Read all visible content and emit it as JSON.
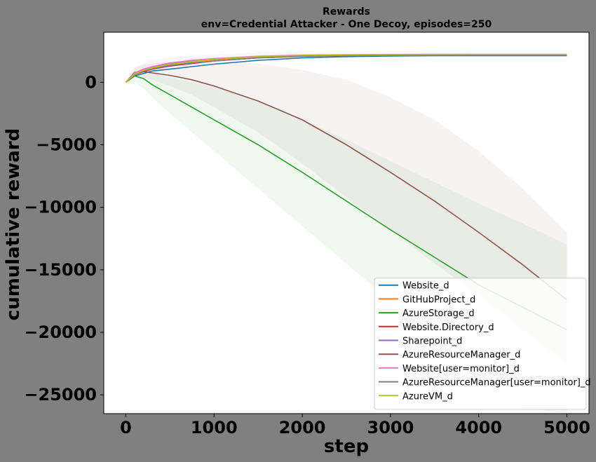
{
  "chart_data": {
    "type": "line",
    "title": "Rewards",
    "subtitle": "env=Credential Attacker - One Decoy, episodes=250",
    "xlabel": "step",
    "ylabel": "cumulative reward",
    "xlim": [
      -250,
      5250
    ],
    "ylim": [
      -26500,
      4000
    ],
    "xticks": [
      0,
      1000,
      2000,
      3000,
      4000,
      5000
    ],
    "xtick_labels": [
      "0",
      "1000",
      "2000",
      "3000",
      "4000",
      "5000"
    ],
    "yticks": [
      0,
      -5000,
      -10000,
      -15000,
      -20000,
      -25000
    ],
    "ytick_labels": [
      "0",
      "−5000",
      "−10000",
      "−15000",
      "−20000",
      "−25000"
    ],
    "grid": false,
    "legend_position": "bottom-right",
    "x": [
      0,
      100,
      200,
      300,
      500,
      750,
      1000,
      1500,
      2000,
      2500,
      3000,
      3500,
      4000,
      4500,
      5000
    ],
    "series": [
      {
        "name": "Website_d",
        "color": "#1f77b4",
        "values": [
          0,
          500,
          700,
          900,
          1050,
          1250,
          1450,
          1750,
          1950,
          2050,
          2100,
          2120,
          2130,
          2130,
          2130
        ]
      },
      {
        "name": "GitHubProject_d",
        "color": "#ff7f0e",
        "values": [
          0,
          650,
          950,
          1150,
          1450,
          1650,
          1800,
          2050,
          2150,
          2180,
          2200,
          2210,
          2210,
          2210,
          2210
        ]
      },
      {
        "name": "AzureStorage_d",
        "color": "#2ca02c",
        "values": [
          0,
          500,
          300,
          -200,
          -1000,
          -2000,
          -3000,
          -5000,
          -7200,
          -9500,
          -11800,
          -14000,
          -16200,
          -18000,
          -19800
        ]
      },
      {
        "name": "Website.Directory_d",
        "color": "#d62728",
        "values": [
          0,
          600,
          850,
          1050,
          1300,
          1500,
          1700,
          1950,
          2080,
          2140,
          2160,
          2170,
          2180,
          2180,
          2180
        ]
      },
      {
        "name": "Sharepoint_d",
        "color": "#9467bd",
        "values": [
          0,
          700,
          1000,
          1200,
          1500,
          1700,
          1850,
          2050,
          2150,
          2190,
          2210,
          2220,
          2220,
          2220,
          2220
        ]
      },
      {
        "name": "AzureResourceManager_d",
        "color": "#8c564b",
        "values": [
          0,
          800,
          850,
          750,
          550,
          200,
          -300,
          -1500,
          -3000,
          -5000,
          -7200,
          -9500,
          -12000,
          -14600,
          -17400
        ]
      },
      {
        "name": "Website[user=monitor]_d",
        "color": "#e377c2",
        "values": [
          0,
          750,
          1050,
          1250,
          1550,
          1750,
          1900,
          2080,
          2170,
          2200,
          2220,
          2230,
          2230,
          2230,
          2230
        ]
      },
      {
        "name": "AzureResourceManager[user=monitor]_d",
        "color": "#7f7f7f",
        "values": [
          0,
          600,
          900,
          1100,
          1350,
          1550,
          1700,
          1950,
          2070,
          2120,
          2150,
          2160,
          2170,
          2170,
          2170
        ]
      },
      {
        "name": "AzureVM_d",
        "color": "#bcbd22",
        "values": [
          0,
          650,
          950,
          1150,
          1450,
          1650,
          1850,
          2050,
          2150,
          2190,
          2210,
          2220,
          2230,
          2230,
          2230
        ]
      }
    ],
    "bands": [
      {
        "series": "AzureStorage_d",
        "color": "#2ca02c",
        "lower": [
          0,
          0,
          -500,
          -1200,
          -2500,
          -4000,
          -5500,
          -8500,
          -11500,
          -14500,
          -17500,
          -20500,
          -23000,
          -26000,
          -28500
        ],
        "upper": [
          0,
          700,
          800,
          700,
          400,
          0,
          -400,
          -1500,
          -3000,
          -4600,
          -6300,
          -8000,
          -9700,
          -11300,
          -13000
        ]
      },
      {
        "series": "AzureResourceManager_d",
        "color": "#8c564b",
        "lower": [
          0,
          500,
          400,
          200,
          -300,
          -1000,
          -2000,
          -4000,
          -6500,
          -9200,
          -11800,
          -14500,
          -17000,
          -19800,
          -22500
        ],
        "upper": [
          0,
          1200,
          1400,
          1500,
          1600,
          1700,
          1700,
          1500,
          1000,
          200,
          -1200,
          -3000,
          -5500,
          -8500,
          -12000
        ]
      },
      {
        "series": "Website[user=monitor]_d",
        "color": "#e377c2",
        "lower": [
          0,
          500,
          700,
          900,
          1200,
          1400,
          1600,
          1900,
          2050,
          2120,
          2150,
          2170,
          2180,
          2180,
          2180
        ],
        "upper": [
          0,
          1100,
          1500,
          1800,
          2000,
          2150,
          2250,
          2350,
          2350,
          2320,
          2300,
          2290,
          2280,
          2280,
          2280
        ]
      }
    ]
  }
}
